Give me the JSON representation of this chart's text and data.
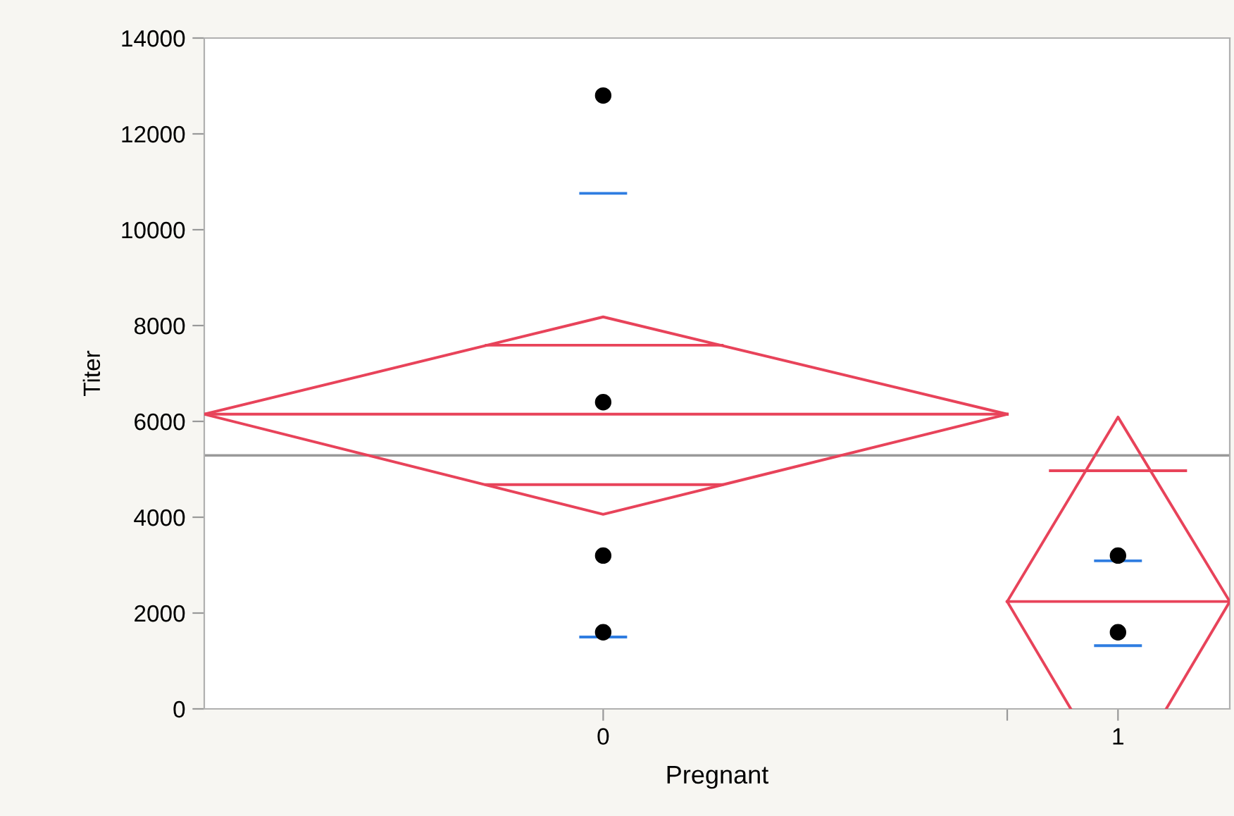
{
  "chart_data": {
    "type": "scatter",
    "xlabel": "Pregnant",
    "ylabel": "Titer",
    "xlim": [
      0,
      1
    ],
    "xticks": [
      {
        "value": 0.389,
        "label": "0"
      },
      {
        "value": 0.783,
        "label": null
      },
      {
        "value": 0.891,
        "label": "1"
      }
    ],
    "ylim": [
      0,
      14000
    ],
    "yticks": [
      0,
      2000,
      4000,
      6000,
      8000,
      10000,
      12000,
      14000
    ],
    "grid": false,
    "legend": false,
    "ref_lines": [
      {
        "axis": "y",
        "value": 5290,
        "color": "#999999",
        "line_style": "solid"
      }
    ],
    "series": [
      {
        "type": "line",
        "color": "#e8435a",
        "marker": "none",
        "x": [
          0,
          0.389,
          0.783
        ],
        "values": [
          6150,
          8180,
          6150
        ]
      },
      {
        "type": "line",
        "color": "#e8435a",
        "marker": "none",
        "x": [
          0,
          0.389,
          0.783
        ],
        "values": [
          6150,
          4060,
          6150
        ]
      },
      {
        "type": "line",
        "color": "#e8435a",
        "marker": "none",
        "x": [
          0,
          0.783
        ],
        "values": [
          6150,
          6150
        ]
      },
      {
        "type": "line",
        "color": "#e8435a",
        "marker": "none",
        "x": [
          0.275,
          0.505
        ],
        "values": [
          7590,
          7590
        ]
      },
      {
        "type": "line",
        "color": "#e8435a",
        "marker": "none",
        "x": [
          0.275,
          0.505
        ],
        "values": [
          4680,
          4680
        ]
      },
      {
        "type": "line",
        "color": "#e8435a",
        "marker": "none",
        "x": [
          0.783,
          0.891,
          1.0
        ],
        "values": [
          2240,
          6090,
          2240
        ]
      },
      {
        "type": "line",
        "color": "#e8435a",
        "marker": "none",
        "x": [
          0.783,
          0.845
        ],
        "values": [
          2240,
          0
        ]
      },
      {
        "type": "line",
        "color": "#e8435a",
        "marker": "none",
        "x": [
          0.938,
          1.0
        ],
        "values": [
          0,
          2240
        ]
      },
      {
        "type": "line",
        "color": "#e8435a",
        "marker": "none",
        "x": [
          0.783,
          1.0
        ],
        "values": [
          2240,
          2240
        ]
      },
      {
        "type": "line",
        "color": "#e8435a",
        "marker": "none",
        "x": [
          0.825,
          0.957
        ],
        "values": [
          4970,
          4970
        ]
      },
      {
        "type": "line",
        "color": "#2f7de1",
        "marker": "none",
        "x": [
          0.367,
          0.411
        ],
        "values": [
          10760,
          10760
        ]
      },
      {
        "type": "line",
        "color": "#2f7de1",
        "marker": "none",
        "x": [
          0.367,
          0.411
        ],
        "values": [
          1500,
          1500
        ]
      },
      {
        "type": "line",
        "color": "#2f7de1",
        "marker": "none",
        "x": [
          0.869,
          0.913
        ],
        "values": [
          3090,
          3090
        ]
      },
      {
        "type": "line",
        "color": "#2f7de1",
        "marker": "none",
        "x": [
          0.869,
          0.913
        ],
        "values": [
          1320,
          1320
        ]
      },
      {
        "color": "#000000",
        "marker": "circle",
        "x": [
          0.389,
          0.389,
          0.389,
          0.389,
          0.891,
          0.891
        ],
        "values": [
          12800,
          6400,
          3200,
          1600,
          3200,
          1600
        ]
      }
    ]
  }
}
